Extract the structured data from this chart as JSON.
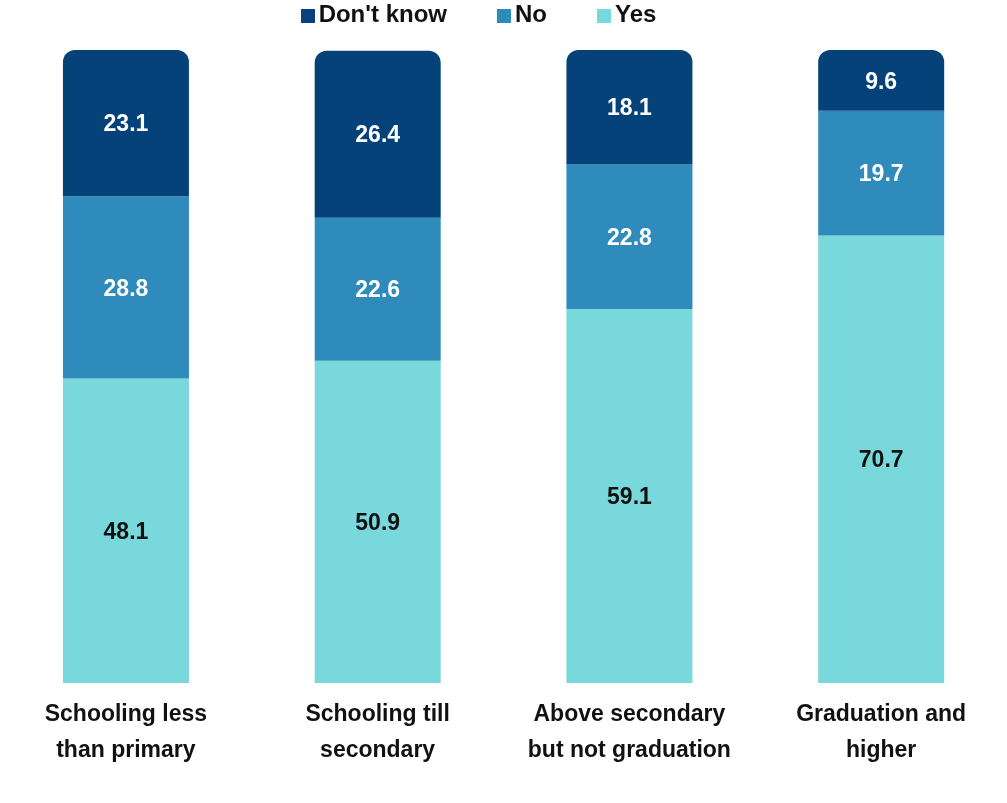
{
  "chart_data": {
    "type": "bar",
    "stacked": true,
    "categories": [
      "Schooling less than primary",
      "Schooling till secondary",
      "Above secondary but not graduation",
      "Graduation and higher"
    ],
    "series": [
      {
        "name": "Yes",
        "color": "#79d8dc",
        "values": [
          48.1,
          50.9,
          59.1,
          70.7
        ]
      },
      {
        "name": "No",
        "color": "#2e8bbb",
        "values": [
          28.8,
          22.6,
          22.8,
          19.7
        ]
      },
      {
        "name": "Don't know",
        "color": "#044279",
        "values": [
          23.1,
          26.4,
          18.1,
          9.6
        ]
      }
    ],
    "data_labels": true,
    "legend": "top",
    "grid": false
  }
}
